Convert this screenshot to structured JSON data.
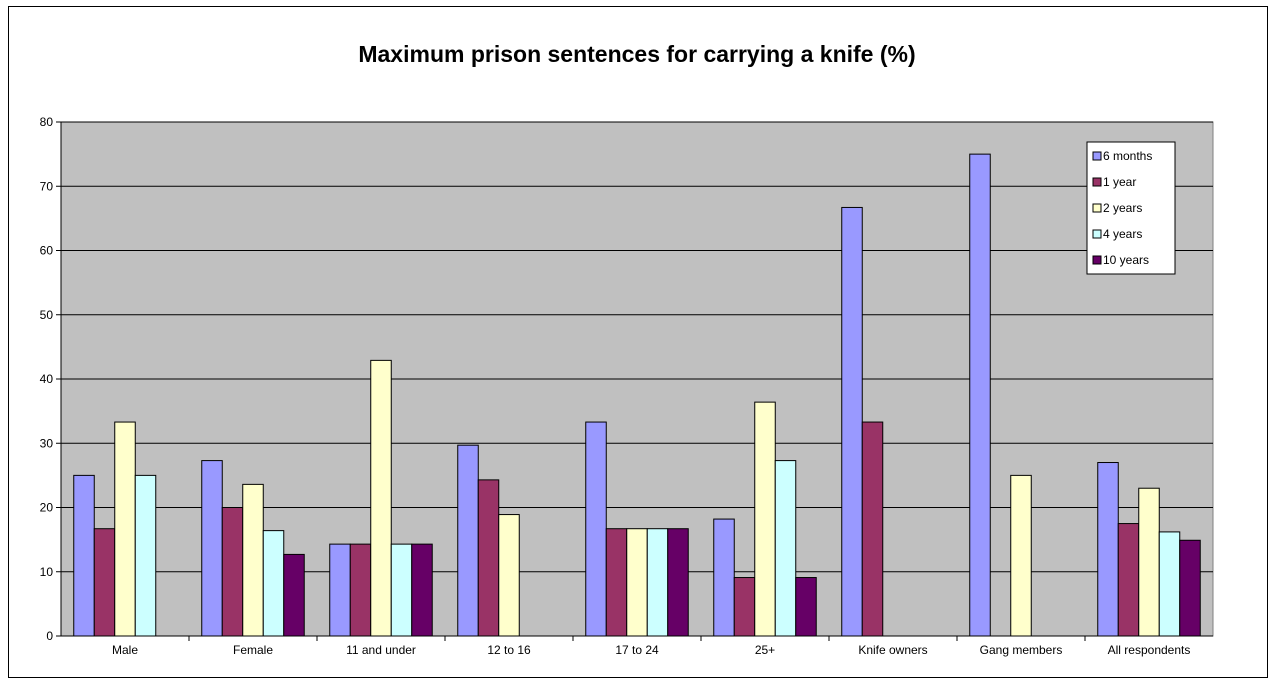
{
  "chart_data": {
    "type": "bar",
    "title": "Maximum prison sentences for carrying a knife (%)",
    "xlabel": "",
    "ylabel": "",
    "ylim": [
      0,
      80
    ],
    "yticks": [
      0,
      10,
      20,
      30,
      40,
      50,
      60,
      70,
      80
    ],
    "grid": true,
    "legend_position": "top-right",
    "categories": [
      "Male",
      "Female",
      "11 and under",
      "12 to 16",
      "17 to 24",
      "25+",
      "Knife owners",
      "Gang members",
      "All respondents"
    ],
    "series": [
      {
        "name": "6 months",
        "color": "#9999ff",
        "values": [
          25,
          27.3,
          14.3,
          29.7,
          33.3,
          18.2,
          66.7,
          75,
          27
        ]
      },
      {
        "name": "1 year",
        "color": "#993366",
        "values": [
          16.7,
          20,
          14.3,
          24.3,
          16.7,
          9.1,
          33.3,
          0,
          17.5
        ]
      },
      {
        "name": "2 years",
        "color": "#ffffcc",
        "values": [
          33.3,
          23.6,
          42.9,
          18.9,
          16.7,
          36.4,
          0,
          25,
          23
        ]
      },
      {
        "name": "4 years",
        "color": "#ccffff",
        "values": [
          25,
          16.4,
          14.3,
          0,
          16.7,
          27.3,
          0,
          0,
          16.2
        ]
      },
      {
        "name": "10 years",
        "color": "#660066",
        "values": [
          0,
          12.7,
          14.3,
          0,
          16.7,
          9.1,
          0,
          0,
          14.9
        ]
      }
    ]
  }
}
